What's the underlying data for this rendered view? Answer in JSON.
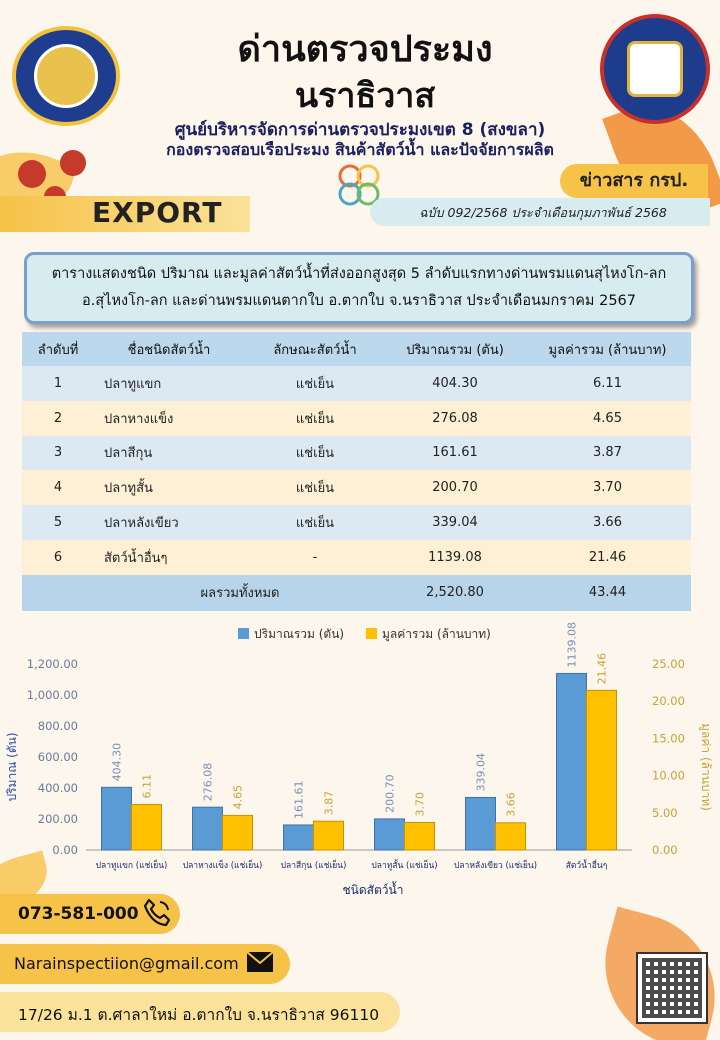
{
  "header": {
    "title_line1": "ด่านตรวจประมง",
    "title_line2": "นราธิวาส",
    "subtitle_line1": "ศูนย์บริหารจัดการด่านตรวจประมงเขต 8 (สงขลา)",
    "subtitle_line2": "กองตรวจสอบเรือประมง สินค้าสัตว์น้ำ และปัจจัยการผลิต",
    "export_label": "EXPORT",
    "news_label": "ข่าวสาร กรป.",
    "issue": "ฉบับ 092/2568 ประจำเดือนกุมภาพันธ์  2568"
  },
  "description": {
    "line1": "ตารางแสดงชนิด ปริมาณ และมูลค่าสัตว์น้ำที่ส่งออกสูงสุด 5 ลำดับแรกทางด่านพรมแดนสุไหงโก-ลก",
    "line2": "อ.สุไหงโก-ลก และด่านพรมแดนตากใบ  อ.ตากใบ  จ.นราธิวาส  ประจำเดือนมกราคม  2567"
  },
  "table": {
    "headers": [
      "ลำดับที่",
      "ชื่อชนิดสัตว์น้ำ",
      "ลักษณะสัตว์น้ำ",
      "ปริมาณรวม (ตัน)",
      "มูลค่ารวม (ล้านบาท)"
    ],
    "rows": [
      [
        "1",
        "ปลาทูแขก",
        "แช่เย็น",
        "404.30",
        "6.11"
      ],
      [
        "2",
        "ปลาหางแข็ง",
        "แช่เย็น",
        "276.08",
        "4.65"
      ],
      [
        "3",
        "ปลาสีกุน",
        "แช่เย็น",
        "161.61",
        "3.87"
      ],
      [
        "4",
        "ปลาทูสั้น",
        "แช่เย็น",
        "200.70",
        "3.70"
      ],
      [
        "5",
        "ปลาหลังเขียว",
        "แช่เย็น",
        "339.04",
        "3.66"
      ],
      [
        "6",
        "สัตว์น้ำอื่นๆ",
        "-",
        "1139.08",
        "21.46"
      ]
    ],
    "total_label": "ผลรวมทั้งหมด",
    "total_quantity": "2,520.80",
    "total_value": "43.44"
  },
  "chart_data": {
    "type": "bar",
    "categories": [
      "ปลาทูแขก (แช่เย็น)",
      "ปลาหางแข็ง (แช่เย็น)",
      "ปลาสีกุน (แช่เย็น)",
      "ปลาทูสั้น (แช่เย็น)",
      "ปลาหลังเขียว (แช่เย็น)",
      "สัตว์น้ำอื่นๆ"
    ],
    "series": [
      {
        "name": "ปริมาณรวม (ตัน)",
        "axis": "left",
        "values": [
          404.3,
          276.08,
          161.61,
          200.7,
          339.04,
          1139.08
        ],
        "labels": [
          "404.30",
          "276.08",
          "161.61",
          "200.70",
          "339.04",
          "1139.08"
        ],
        "color": "#5b9bd5"
      },
      {
        "name": "มูลค่ารวม (ล้านบาท)",
        "axis": "right",
        "values": [
          6.11,
          4.65,
          3.87,
          3.7,
          3.66,
          21.46
        ],
        "labels": [
          "6.11",
          "4.65",
          "3.87",
          "3.70",
          "3.66",
          "21.46"
        ],
        "color": "#ffc000"
      }
    ],
    "xlabel": "ชนิดสัตว์น้ำ",
    "ylabel": "ปริมาณ (ตัน)",
    "y2label": "มูลค่า (ล้านบาท)",
    "ylim": [
      0,
      1200
    ],
    "y2lim": [
      0,
      25
    ],
    "yticks": [
      "0.00",
      "200.00",
      "400.00",
      "600.00",
      "800.00",
      "1,000.00",
      "1,200.00"
    ],
    "y2ticks": [
      "0.00",
      "5.00",
      "10.00",
      "15.00",
      "20.00",
      "25.00"
    ],
    "grid": false,
    "legend": "top-center"
  },
  "contact": {
    "phone": "073-581-000",
    "email": "Narainspectiion@gmail.com",
    "address": "17/26 ม.1 ต.ศาลาใหม่ อ.ตากใบ จ.นราธิวาส 96110"
  },
  "colors": {
    "accent_yellow": "#f6c247",
    "accent_orange": "#f08a2c",
    "table_blue": "#bcd8ec",
    "table_cream": "#fdf0d4",
    "box_blue": "#d7ecf1"
  }
}
